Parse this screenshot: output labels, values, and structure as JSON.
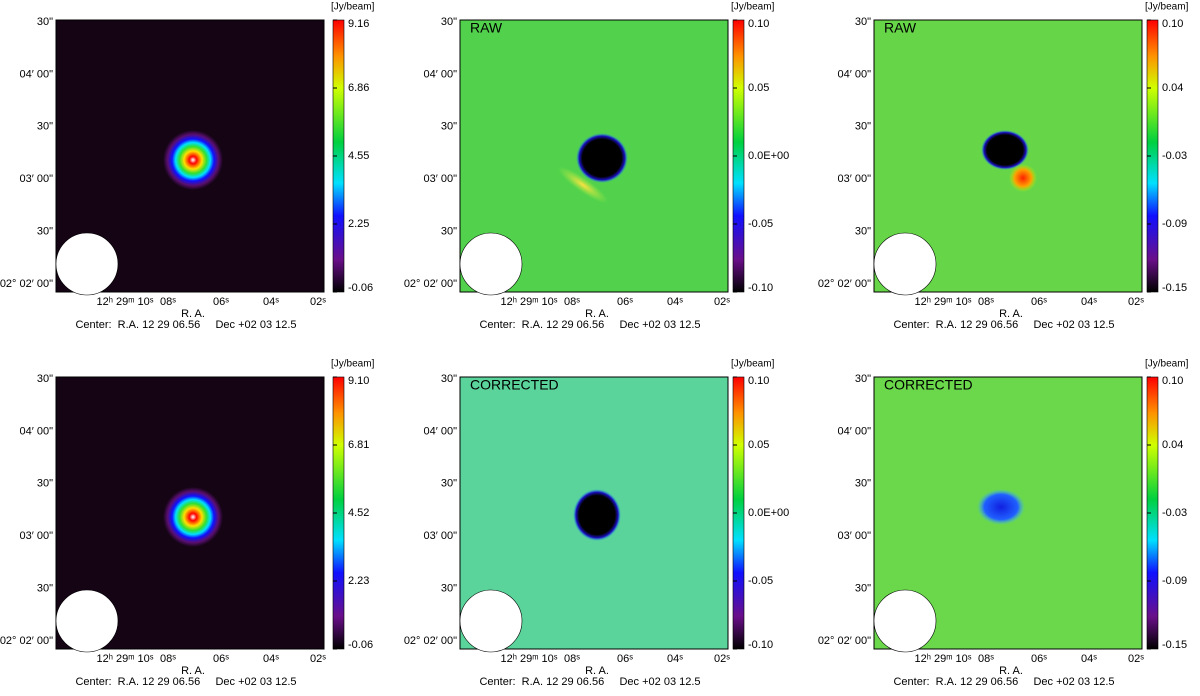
{
  "axes": {
    "y_ticks": [
      "30\"",
      "04′ 00\"",
      "30\"",
      "03′ 00\"",
      "30\"",
      "02° 02′ 00\""
    ],
    "x_ticks": [
      "12ʰ 29ᵐ 10ˢ",
      "08ˢ",
      "06ˢ",
      "04ˢ",
      "02ˢ"
    ],
    "x_label": "R. A.",
    "center": "Center:  R.A. 12 29 06.56     Dec +02 03 12.5"
  },
  "panels": [
    {
      "unit": "[Jy/beam]",
      "colorbar_ticks": [
        "9.16",
        "6.86",
        "4.55",
        "2.25",
        "-0.06"
      ]
    },
    {
      "label": "RAW",
      "unit": "[Jy/beam]",
      "colorbar_ticks": [
        "0.10",
        "0.05",
        "0.0E+00",
        "-0.05",
        "-0.10"
      ]
    },
    {
      "label": "RAW",
      "unit": "[Jy/beam]",
      "colorbar_ticks": [
        "0.10",
        "0.04",
        "-0.03",
        "-0.09",
        "-0.15"
      ]
    },
    {
      "unit": "[Jy/beam]",
      "colorbar_ticks": [
        "9.10",
        "6.81",
        "4.52",
        "2.23",
        "-0.06"
      ]
    },
    {
      "label": "CORRECTED",
      "unit": "[Jy/beam]",
      "colorbar_ticks": [
        "0.10",
        "0.05",
        "0.0E+00",
        "-0.05",
        "-0.10"
      ]
    },
    {
      "label": "CORRECTED",
      "unit": "[Jy/beam]",
      "colorbar_ticks": [
        "0.10",
        "0.04",
        "-0.03",
        "-0.09",
        "-0.15"
      ]
    }
  ]
}
